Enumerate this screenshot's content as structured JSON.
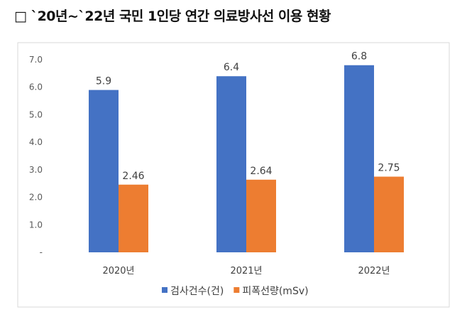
{
  "title": "□ `20년~`22년 국민 1인당 연간 의료방사선 이용 현황",
  "chart_data": {
    "type": "bar",
    "title": "",
    "xlabel": "",
    "ylabel": "",
    "ylim": [
      0,
      7
    ],
    "yticks": [
      "-",
      "1.0",
      "2.0",
      "3.0",
      "4.0",
      "5.0",
      "6.0",
      "7.0"
    ],
    "categories": [
      "2020년",
      "2021년",
      "2022년"
    ],
    "series": [
      {
        "name": "검사건수(건)",
        "values": [
          5.9,
          6.4,
          6.8
        ],
        "labels": [
          "5.9",
          "6.4",
          "6.8"
        ],
        "color": "#4472C4"
      },
      {
        "name": "피폭선량(mSv)",
        "values": [
          2.46,
          2.64,
          2.75
        ],
        "labels": [
          "2.46",
          "2.64",
          "2.75"
        ],
        "color": "#ED7D31"
      }
    ],
    "grid": false,
    "legend": "bottom"
  }
}
